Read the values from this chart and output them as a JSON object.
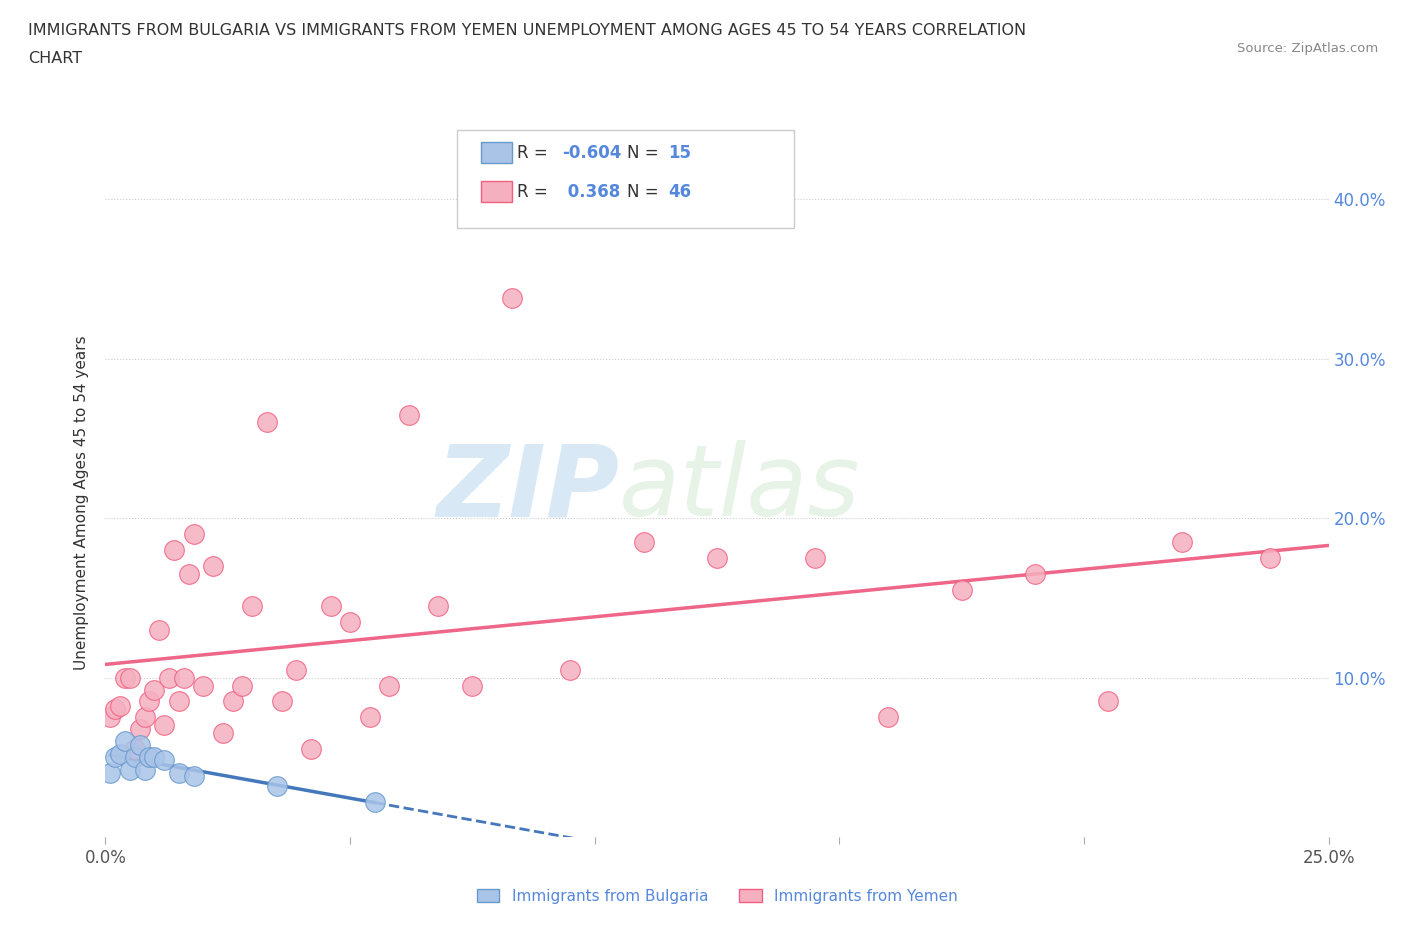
{
  "title_line1": "IMMIGRANTS FROM BULGARIA VS IMMIGRANTS FROM YEMEN UNEMPLOYMENT AMONG AGES 45 TO 54 YEARS CORRELATION",
  "title_line2": "CHART",
  "source_text": "Source: ZipAtlas.com",
  "ylabel": "Unemployment Among Ages 45 to 54 years",
  "watermark_zip": "ZIP",
  "watermark_atlas": "atlas",
  "xlim": [
    0.0,
    0.25
  ],
  "ylim": [
    0.0,
    0.42
  ],
  "xticks": [
    0.0,
    0.05,
    0.1,
    0.15,
    0.2,
    0.25
  ],
  "yticks": [
    0.0,
    0.1,
    0.2,
    0.3,
    0.4
  ],
  "yticklabels_right": [
    "",
    "10.0%",
    "20.0%",
    "30.0%",
    "40.0%"
  ],
  "grid_color": "#cccccc",
  "bg_color": "#ffffff",
  "bulgaria_dot_color": "#aac4e8",
  "bulgaria_edge_color": "#6699cc",
  "yemen_dot_color": "#f5b0c0",
  "yemen_edge_color": "#f06080",
  "bulgaria_trend_color": "#4477bb",
  "yemen_trend_color": "#ee6688",
  "R_bulgaria": -0.604,
  "N_bulgaria": 15,
  "R_yemen": 0.368,
  "N_yemen": 46,
  "legend_label_bulgaria": "Immigrants from Bulgaria",
  "legend_label_yemen": "Immigrants from Yemen",
  "tick_color_right": "#5588dd",
  "title_color": "#333333",
  "source_color": "#888888",
  "ylabel_color": "#333333",
  "bulgaria_x": [
    0.001,
    0.002,
    0.003,
    0.004,
    0.005,
    0.006,
    0.007,
    0.008,
    0.009,
    0.01,
    0.012,
    0.015,
    0.018,
    0.035,
    0.055
  ],
  "bulgaria_y": [
    0.04,
    0.05,
    0.052,
    0.06,
    0.042,
    0.05,
    0.058,
    0.042,
    0.05,
    0.05,
    0.048,
    0.04,
    0.038,
    0.032,
    0.022
  ],
  "yemen_x": [
    0.001,
    0.002,
    0.003,
    0.004,
    0.005,
    0.006,
    0.007,
    0.008,
    0.009,
    0.01,
    0.011,
    0.012,
    0.013,
    0.014,
    0.015,
    0.016,
    0.017,
    0.018,
    0.02,
    0.022,
    0.024,
    0.026,
    0.028,
    0.03,
    0.033,
    0.036,
    0.039,
    0.042,
    0.046,
    0.05,
    0.054,
    0.058,
    0.062,
    0.068,
    0.075,
    0.083,
    0.095,
    0.11,
    0.125,
    0.145,
    0.16,
    0.175,
    0.19,
    0.205,
    0.22,
    0.238
  ],
  "yemen_y": [
    0.075,
    0.08,
    0.082,
    0.1,
    0.1,
    0.055,
    0.068,
    0.075,
    0.085,
    0.092,
    0.13,
    0.07,
    0.1,
    0.18,
    0.085,
    0.1,
    0.165,
    0.19,
    0.095,
    0.17,
    0.065,
    0.085,
    0.095,
    0.145,
    0.26,
    0.085,
    0.105,
    0.055,
    0.145,
    0.135,
    0.075,
    0.095,
    0.265,
    0.145,
    0.095,
    0.338,
    0.105,
    0.185,
    0.175,
    0.175,
    0.075,
    0.155,
    0.165,
    0.085,
    0.185,
    0.175
  ]
}
